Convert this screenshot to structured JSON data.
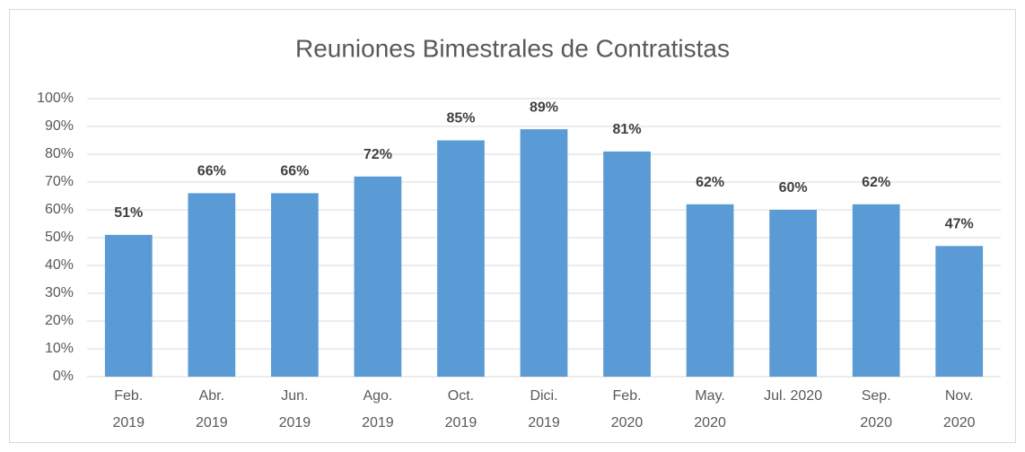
{
  "chart_data": {
    "type": "bar",
    "title": "Reuniones Bimestrales de Contratistas",
    "categories": [
      "Feb.\n2019",
      "Abr.\n2019",
      "Jun.\n2019",
      "Ago.\n2019",
      "Oct.\n2019",
      "Dici.\n2019",
      "Feb.\n2020",
      "May.\n2020",
      "Jul. 2020",
      "Sep.\n2020",
      "Nov.\n2020"
    ],
    "values": [
      51,
      66,
      66,
      72,
      85,
      89,
      81,
      62,
      60,
      62,
      47
    ],
    "value_labels": [
      "51%",
      "66%",
      "66%",
      "72%",
      "85%",
      "89%",
      "81%",
      "62%",
      "60%",
      "62%",
      "47%"
    ],
    "color": "#5b9bd5",
    "ylim": [
      0,
      100
    ],
    "yticks": [
      {
        "value": 0,
        "label": "0%"
      },
      {
        "value": 10,
        "label": "10%"
      },
      {
        "value": 20,
        "label": "20%"
      },
      {
        "value": 30,
        "label": "30%"
      },
      {
        "value": 40,
        "label": "40%"
      },
      {
        "value": 50,
        "label": "50%"
      },
      {
        "value": 60,
        "label": "60%"
      },
      {
        "value": 70,
        "label": "70%"
      },
      {
        "value": 80,
        "label": "80%"
      },
      {
        "value": 90,
        "label": "90%"
      },
      {
        "value": 100,
        "label": "100%"
      }
    ],
    "grid": true
  }
}
